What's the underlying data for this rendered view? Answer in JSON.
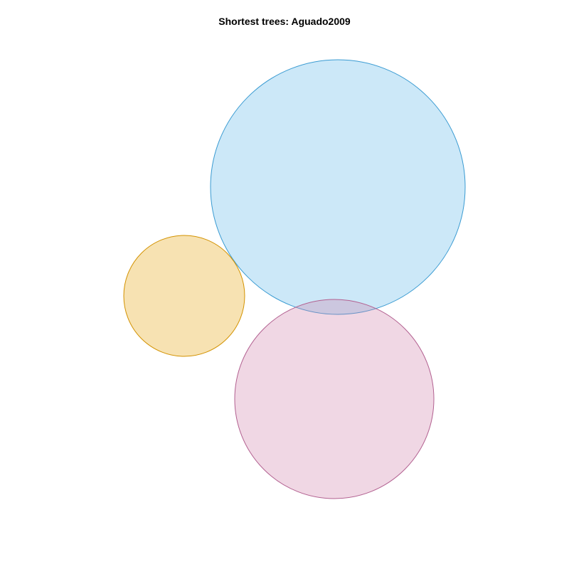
{
  "title": "Shortest trees: Aguado2009",
  "sets": [
    {
      "id": "blue",
      "fill": "#56B4E9",
      "stroke": "#3A9BD2",
      "fill_opacity": 0.3
    },
    {
      "id": "orange",
      "fill": "#E69F00",
      "stroke": "#D39200",
      "fill_opacity": 0.3
    },
    {
      "id": "pink",
      "fill": "#CC79A7",
      "stroke": "#B26090",
      "fill_opacity": 0.3
    }
  ]
}
